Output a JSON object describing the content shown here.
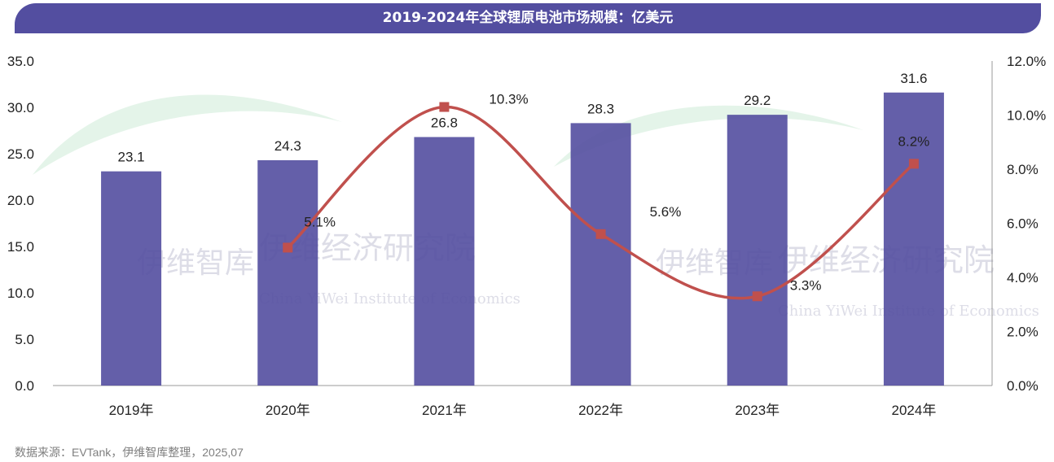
{
  "title": "2019-2024年全球锂原电池市场规模：亿美元",
  "source": "数据来源：EVTank，伊维智库整理，2025,07",
  "watermark": [
    "伊维智库",
    "伊维经济研究院",
    "China YiWei Institute of Economics"
  ],
  "colors": {
    "bar": "#534ea0",
    "line": "#c0504d",
    "title_bg": "#534ea0"
  },
  "chart_data": {
    "type": "bar",
    "title": "2019-2024年全球锂原电池市场规模：亿美元",
    "categories": [
      "2019年",
      "2020年",
      "2021年",
      "2022年",
      "2023年",
      "2024年"
    ],
    "series": [
      {
        "type": "bar",
        "axis": "left",
        "values": [
          23.1,
          24.3,
          26.8,
          28.3,
          29.2,
          31.6
        ],
        "labels": [
          "23.1",
          "24.3",
          "26.8",
          "28.3",
          "29.2",
          "31.6"
        ]
      },
      {
        "type": "line",
        "axis": "right",
        "values": [
          null,
          5.1,
          10.3,
          5.6,
          3.3,
          8.2
        ],
        "labels": [
          "",
          "5.1%",
          "10.3%",
          "5.6%",
          "3.3%",
          "8.2%"
        ]
      }
    ],
    "y_left": {
      "range": [
        0,
        35
      ],
      "ticks": [
        "0.0",
        "5.0",
        "10.0",
        "15.0",
        "20.0",
        "25.0",
        "30.0",
        "35.0"
      ]
    },
    "y_right": {
      "range": [
        0,
        12
      ],
      "ticks": [
        "0.0%",
        "2.0%",
        "4.0%",
        "6.0%",
        "8.0%",
        "10.0%",
        "12.0%"
      ]
    },
    "grid": false,
    "legend": "none"
  }
}
